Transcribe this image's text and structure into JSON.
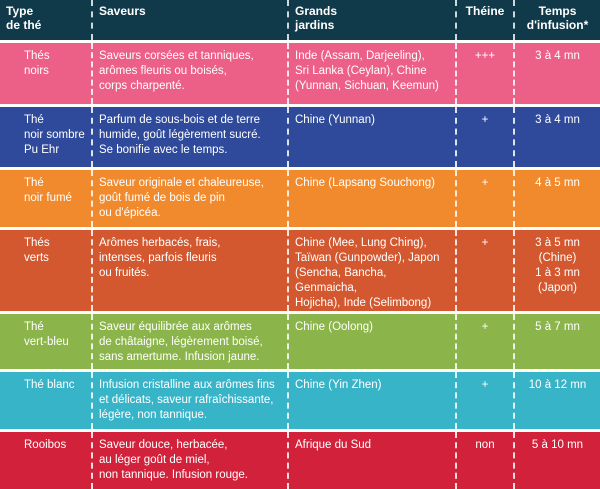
{
  "headers": {
    "type": [
      "Type",
      "de thé"
    ],
    "saveurs": [
      "Saveurs"
    ],
    "jardins": [
      "Grands",
      "jardins"
    ],
    "theine": [
      "Théine"
    ],
    "temps": [
      "Temps",
      "d'infusion*"
    ]
  },
  "colors": {
    "header": "#10394a",
    "noirs": "#ec5f86",
    "puerh": "#2f4a9a",
    "fume": "#f18a2c",
    "verts": "#d4582f",
    "vertbleu": "#8bb54a",
    "blanc": "#38b4c9",
    "rooibos": "#d2223b"
  },
  "rows": [
    {
      "type": [
        "Thés",
        "noirs"
      ],
      "saveurs": [
        "Saveurs corsées et tanniques,",
        "arômes fleuris ou boisés,",
        "corps charpenté."
      ],
      "jardins": [
        "Inde (Assam, Darjeeling),",
        "Sri Lanka (Ceylan), Chine",
        "(Yunnan, Sichuan, Keemun)"
      ],
      "theine": [
        "+++"
      ],
      "temps": [
        "3 à 4 mn"
      ]
    },
    {
      "type": [
        "Thé",
        "noir sombre",
        "Pu Ehr"
      ],
      "saveurs": [
        "Parfum de sous-bois et de terre",
        "humide, goût légèrement sucré.",
        "Se bonifie avec le temps."
      ],
      "jardins": [
        "Chine (Yunnan)"
      ],
      "theine": [
        "+"
      ],
      "temps": [
        "3 à 4 mn"
      ]
    },
    {
      "type": [
        "Thé",
        "noir fumé"
      ],
      "saveurs": [
        "Saveur originale et chaleureuse,",
        "goût fumé de bois de pin",
        "ou d'épicéa."
      ],
      "jardins": [
        "Chine (Lapsang Souchong)"
      ],
      "theine": [
        "+"
      ],
      "temps": [
        "4 à 5 mn"
      ]
    },
    {
      "type": [
        "Thés",
        "verts"
      ],
      "saveurs": [
        "Arômes herbacés, frais,",
        "intenses, parfois fleuris",
        "ou fruités."
      ],
      "jardins": [
        "Chine (Mee, Lung Ching),",
        "Taïwan (Gunpowder), Japon",
        "(Sencha, Bancha, Genmaicha,",
        "Hojicha), Inde (Selimbong)"
      ],
      "theine": [
        "+"
      ],
      "temps": [
        "3 à 5 mn",
        "(Chine)",
        "1 à 3 mn",
        "(Japon)"
      ]
    },
    {
      "type": [
        "Thé",
        "vert-bleu"
      ],
      "saveurs": [
        "Saveur équilibrée aux arômes",
        "de châtaigne, légèrement boisé,",
        "sans amertume. Infusion jaune."
      ],
      "jardins": [
        "Chine (Oolong)"
      ],
      "theine": [
        "+"
      ],
      "temps": [
        "5 à 7 mn"
      ]
    },
    {
      "type": [
        "Thé blanc"
      ],
      "saveurs": [
        "Infusion cristalline aux arômes fins",
        "et délicats, saveur rafraîchissante,",
        "légère, non tannique."
      ],
      "jardins": [
        "Chine (Yin Zhen)"
      ],
      "theine": [
        "+"
      ],
      "temps": [
        "10 à 12 mn"
      ]
    },
    {
      "type": [
        "Rooibos"
      ],
      "saveurs": [
        "Saveur douce, herbacée,",
        "au léger goût de miel,",
        "non tannique. Infusion rouge."
      ],
      "jardins": [
        "Afrique du Sud"
      ],
      "theine": [
        "non"
      ],
      "temps": [
        "5 à 10 mn"
      ]
    }
  ]
}
